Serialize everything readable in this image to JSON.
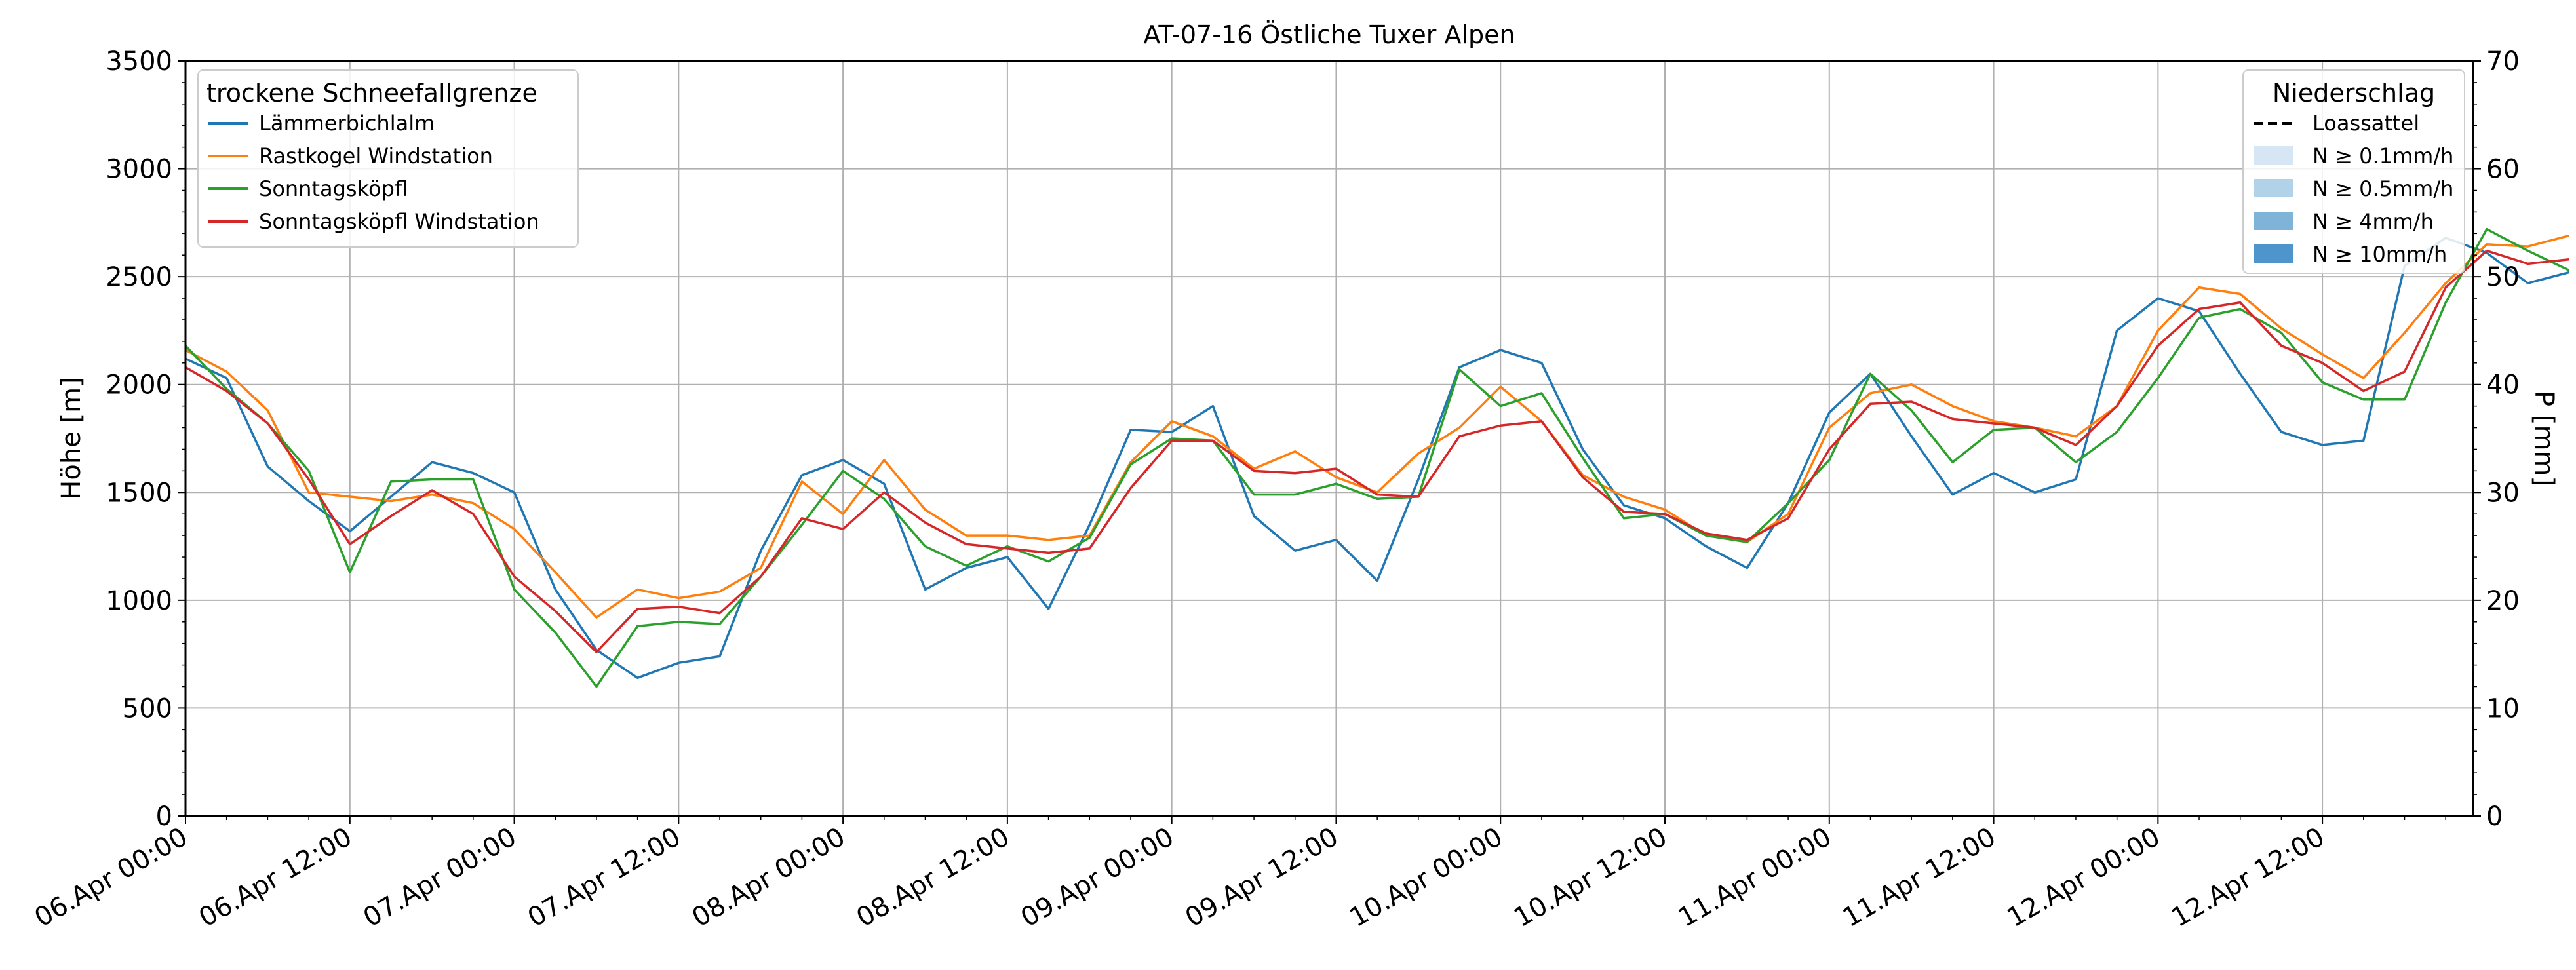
{
  "chart_data": {
    "type": "line",
    "title": "AT-07-16 Östliche Tuxer Alpen",
    "ylabel": "Höhe [m]",
    "ylabel_right": "P [mm]",
    "ylim": [
      0,
      3500
    ],
    "ylim_right": [
      0,
      70
    ],
    "y_ticks": [
      "0",
      "500",
      "1000",
      "1500",
      "2000",
      "2500",
      "3000",
      "3500"
    ],
    "y_right_ticks": [
      "0",
      "10",
      "20",
      "30",
      "40",
      "50",
      "60",
      "70"
    ],
    "x_start": "2024-04-06T00:00",
    "x_step_hours": 3,
    "xlim_hours": [
      0,
      167
    ],
    "x_ticks": [
      "06.Apr 00:00",
      "06.Apr 12:00",
      "07.Apr 00:00",
      "07.Apr 12:00",
      "08.Apr 00:00",
      "08.Apr 12:00",
      "09.Apr 00:00",
      "09.Apr 12:00",
      "10.Apr 00:00",
      "10.Apr 12:00",
      "11.Apr 00:00",
      "11.Apr 12:00",
      "12.Apr 00:00",
      "12.Apr 12:00"
    ],
    "grid": true,
    "legend_left": {
      "title": "trockene Schneefallgrenze",
      "placement": "top-left"
    },
    "legend_right": {
      "title": "Niederschlag",
      "placement": "top-right",
      "entries": [
        {
          "label": "Loassattel",
          "style": "dashed",
          "color": "#000000"
        },
        {
          "label": "N ≥ 0.1mm/h",
          "color": "#d6e6f4"
        },
        {
          "label": "N ≥ 0.5mm/h",
          "color": "#b1d2e8"
        },
        {
          "label": "N ≥ 4mm/h",
          "color": "#7fb3d8"
        },
        {
          "label": "N ≥ 10mm/h",
          "color": "#4e95cb"
        }
      ]
    },
    "precipitation": {
      "name": "Loassattel",
      "values": [
        0,
        0
      ]
    },
    "series": [
      {
        "name": "Lämmerbichlalm",
        "color": "#1f77b4",
        "values": [
          2120,
          2030,
          1620,
          1460,
          1320,
          1480,
          1640,
          1590,
          1500,
          1050,
          770,
          640,
          710,
          740,
          1230,
          1580,
          1650,
          1540,
          1050,
          1150,
          1200,
          960,
          1350,
          1790,
          1780,
          1900,
          1390,
          1230,
          1280,
          1090,
          1560,
          2080,
          2160,
          2100,
          1700,
          1440,
          1380,
          1250,
          1150,
          1450,
          1870,
          2050,
          1760,
          1490,
          1590,
          1500,
          1560,
          2250,
          2400,
          2340,
          2050,
          1780,
          1720,
          1740,
          2550,
          2680,
          2610,
          2470,
          2520
        ]
      },
      {
        "name": "Rastkogel Windstation",
        "color": "#ff7f0e",
        "values": [
          2160,
          2060,
          1880,
          1500,
          1480,
          1460,
          1490,
          1450,
          1330,
          1130,
          920,
          1050,
          1010,
          1040,
          1150,
          1550,
          1400,
          1650,
          1420,
          1300,
          1300,
          1280,
          1300,
          1640,
          1830,
          1760,
          1610,
          1690,
          1570,
          1500,
          1680,
          1800,
          1990,
          1830,
          1580,
          1480,
          1420,
          1300,
          1270,
          1400,
          1800,
          1960,
          2000,
          1900,
          1830,
          1800,
          1760,
          1900,
          2250,
          2450,
          2420,
          2260,
          2140,
          2030,
          2240,
          2470,
          2650,
          2640,
          2690
        ]
      },
      {
        "name": "Sonntagsköpfl",
        "color": "#2ca02c",
        "values": [
          2180,
          1980,
          1820,
          1600,
          1130,
          1550,
          1560,
          1560,
          1050,
          850,
          600,
          880,
          900,
          890,
          1110,
          1350,
          1600,
          1470,
          1250,
          1160,
          1250,
          1180,
          1290,
          1630,
          1750,
          1740,
          1490,
          1490,
          1540,
          1470,
          1480,
          2070,
          1900,
          1960,
          1660,
          1380,
          1400,
          1300,
          1270,
          1450,
          1650,
          2050,
          1880,
          1640,
          1790,
          1800,
          1640,
          1780,
          2030,
          2310,
          2350,
          2240,
          2010,
          1930,
          1930,
          2380,
          2720,
          2620,
          2530
        ]
      },
      {
        "name": "Sonntagsköpfl Windstation",
        "color": "#d62728",
        "values": [
          2080,
          1970,
          1820,
          1560,
          1260,
          1390,
          1510,
          1400,
          1110,
          950,
          760,
          960,
          970,
          940,
          1110,
          1380,
          1330,
          1500,
          1360,
          1260,
          1240,
          1220,
          1240,
          1520,
          1740,
          1740,
          1600,
          1590,
          1610,
          1490,
          1480,
          1760,
          1810,
          1830,
          1570,
          1410,
          1400,
          1310,
          1280,
          1380,
          1700,
          1910,
          1920,
          1840,
          1820,
          1800,
          1720,
          1900,
          2180,
          2350,
          2380,
          2180,
          2100,
          1970,
          2060,
          2450,
          2620,
          2560,
          2580
        ]
      }
    ]
  }
}
